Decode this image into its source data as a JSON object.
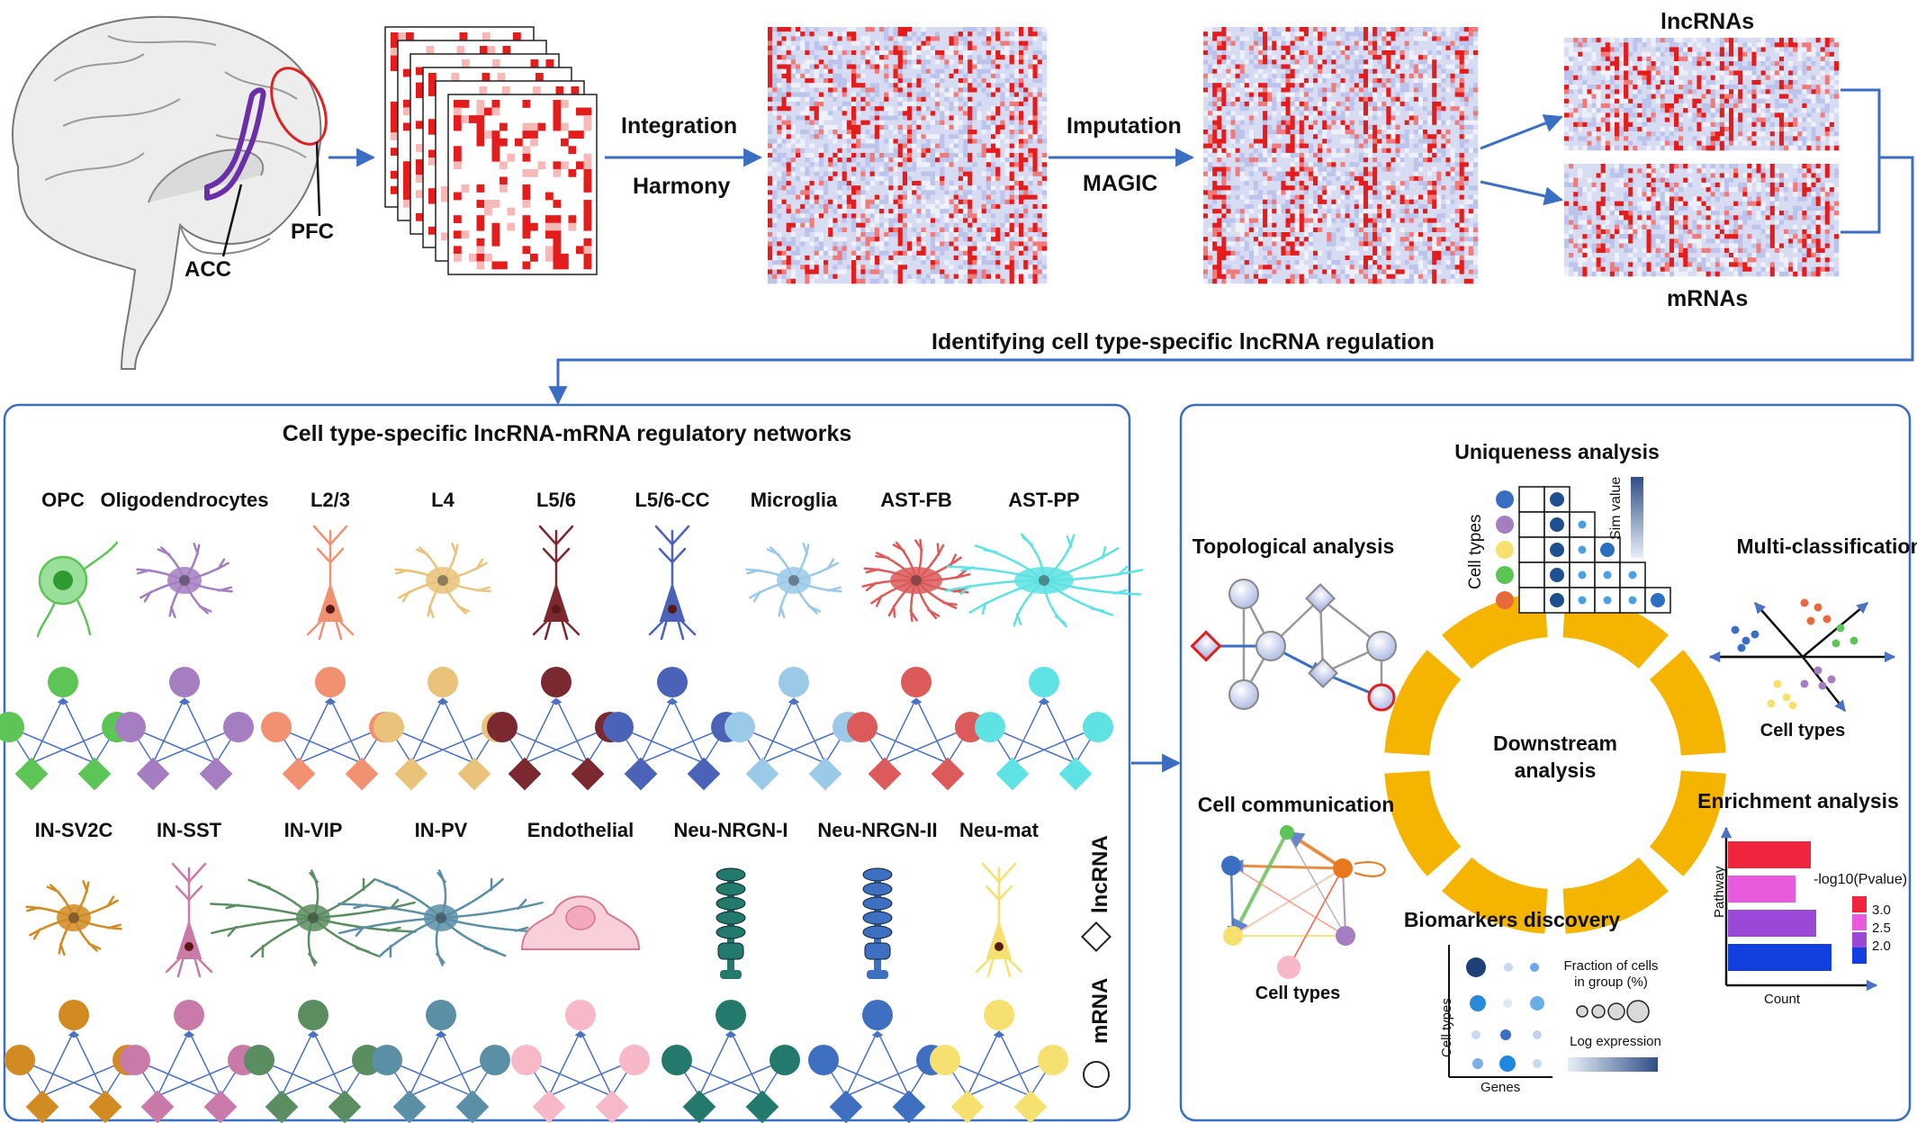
{
  "top": {
    "acc": "ACC",
    "pfc": "PFC",
    "integration": "Integration",
    "harmony": "Harmony",
    "imputation": "Imputation",
    "magic": "MAGIC",
    "lncrnas": "lncRNAs",
    "mrnas": "mRNAs",
    "identifying": "Identifying cell type-specific lncRNA regulation"
  },
  "left_panel": {
    "title": "Cell type-specific lncRNA-mRNA regulatory networks",
    "row1": [
      {
        "name": "OPC",
        "color": "#5dc456"
      },
      {
        "name": "Oligodendrocytes",
        "color": "#a47ec0"
      },
      {
        "name": "L2/3",
        "color": "#f29072"
      },
      {
        "name": "L4",
        "color": "#e9c37a"
      },
      {
        "name": "L5/6",
        "color": "#7b2830"
      },
      {
        "name": "L5/6-CC",
        "color": "#4a63b8"
      },
      {
        "name": "Microglia",
        "color": "#9bc9e8"
      },
      {
        "name": "AST-FB",
        "color": "#dc5a5a"
      },
      {
        "name": "AST-PP",
        "color": "#5ee2e4"
      }
    ],
    "row2": [
      {
        "name": "IN-SV2C",
        "color": "#d28a22"
      },
      {
        "name": "IN-SST",
        "color": "#c97aa8"
      },
      {
        "name": "IN-VIP",
        "color": "#5a8d60"
      },
      {
        "name": "IN-PV",
        "color": "#5a8fa6"
      },
      {
        "name": "Endothelial",
        "color": "#f7b8c8"
      },
      {
        "name": "Neu-NRGN-I",
        "color": "#23796c"
      },
      {
        "name": "Neu-NRGN-II",
        "color": "#3f6fc0"
      },
      {
        "name": "Neu-mat",
        "color": "#f5e070"
      }
    ],
    "legend_lncrna": "lncRNA",
    "legend_mrna": "mRNA"
  },
  "right_panel": {
    "uniqueness": "Uniqueness analysis",
    "sim_value": "Sim value",
    "cell_types_axis": "Cell types",
    "topological": "Topological analysis",
    "multiclass": "Multi-classification",
    "multiclass_sub": "Cell types",
    "center_line1": "Downstream",
    "center_line2": "analysis",
    "cell_comm": "Cell communication",
    "cell_comm_sub": "Cell types",
    "enrichment": "Enrichment analysis",
    "pathway": "Pathway",
    "count": "Count",
    "pvalue": "-log10(Pvalue)",
    "pvalue_ticks": [
      "3.0",
      "2.5",
      "2.0"
    ],
    "biomarkers": "Biomarkers discovery",
    "bio_cell_types": "Cell types",
    "genes": "Genes",
    "fraction1": "Fraction of cells",
    "fraction2": "in group (%)",
    "log_expr": "Log expression",
    "ring_color": "#f4b400"
  }
}
